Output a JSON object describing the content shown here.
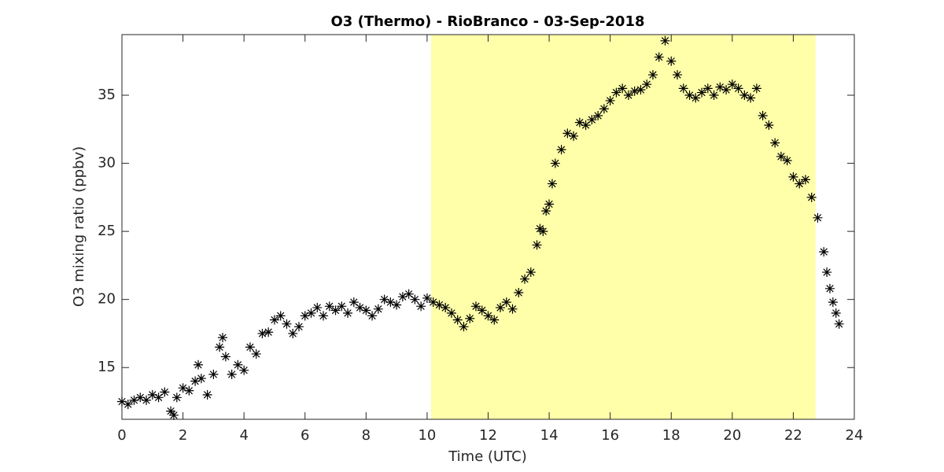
{
  "chart_data": {
    "type": "scatter",
    "title": "O3 (Thermo) - RioBranco - 03-Sep-2018",
    "xlabel": "Time (UTC)",
    "ylabel": "O3 mixing ratio (ppbv)",
    "xlim": [
      0,
      24
    ],
    "xticks": [
      0,
      2,
      4,
      6,
      8,
      10,
      12,
      14,
      16,
      18,
      20,
      22,
      24
    ],
    "ylim": [
      11.2,
      39.45
    ],
    "yticks": [
      15,
      20,
      25,
      30,
      35
    ],
    "shaded_span": {
      "x": [
        10.13,
        22.73
      ],
      "color": "#ffffaa"
    },
    "marker": "asterisk",
    "series": [
      {
        "color": "#000000",
        "x": [
          0.0,
          0.2,
          0.4,
          0.6,
          0.8,
          1.0,
          1.2,
          1.4,
          1.6,
          1.7,
          1.8,
          2.0,
          2.2,
          2.4,
          2.5,
          2.6,
          2.8,
          3.0,
          3.2,
          3.3,
          3.4,
          3.6,
          3.8,
          4.0,
          4.2,
          4.4,
          4.6,
          4.8,
          5.0,
          5.2,
          5.4,
          5.6,
          5.8,
          6.0,
          6.2,
          6.4,
          6.6,
          6.8,
          7.0,
          7.2,
          7.4,
          7.6,
          7.8,
          8.0,
          8.2,
          8.4,
          8.6,
          8.8,
          9.0,
          9.2,
          9.4,
          9.6,
          9.8,
          10.0,
          10.2,
          10.4,
          10.6,
          10.8,
          11.0,
          11.2,
          11.4,
          11.6,
          11.8,
          12.0,
          12.2,
          12.4,
          12.6,
          12.8,
          13.0,
          13.2,
          13.4,
          13.6,
          13.7,
          13.8,
          13.9,
          14.0,
          14.1,
          14.2,
          14.4,
          14.6,
          14.8,
          15.0,
          15.2,
          15.4,
          15.6,
          15.8,
          16.0,
          16.2,
          16.4,
          16.6,
          16.8,
          17.0,
          17.2,
          17.4,
          17.6,
          17.8,
          18.0,
          18.2,
          18.4,
          18.6,
          18.8,
          19.0,
          19.2,
          19.4,
          19.6,
          19.8,
          20.0,
          20.2,
          20.4,
          20.6,
          20.8,
          21.0,
          21.2,
          21.4,
          21.6,
          21.8,
          22.0,
          22.2,
          22.4,
          22.6,
          22.8,
          23.0,
          23.1,
          23.2,
          23.3,
          23.4,
          23.5
        ],
        "values": [
          12.5,
          12.3,
          12.6,
          12.8,
          12.6,
          13.0,
          12.8,
          13.2,
          11.8,
          11.5,
          12.8,
          13.5,
          13.3,
          14.0,
          15.2,
          14.2,
          13.0,
          14.5,
          16.5,
          17.2,
          15.8,
          14.5,
          15.2,
          14.8,
          16.5,
          16.0,
          17.5,
          17.6,
          18.5,
          18.8,
          18.2,
          17.5,
          18.0,
          18.8,
          19.0,
          19.4,
          18.8,
          19.5,
          19.2,
          19.5,
          19.0,
          19.8,
          19.4,
          19.2,
          18.8,
          19.3,
          20.0,
          19.8,
          19.6,
          20.2,
          20.4,
          20.0,
          19.5,
          20.1,
          19.8,
          19.6,
          19.4,
          19.0,
          18.5,
          18.0,
          18.6,
          19.5,
          19.2,
          18.8,
          18.5,
          19.4,
          19.8,
          19.3,
          20.5,
          21.5,
          22.0,
          24.0,
          25.2,
          25.0,
          26.5,
          27.0,
          28.5,
          30.0,
          31.0,
          32.2,
          32.0,
          33.0,
          32.8,
          33.2,
          33.5,
          34.0,
          34.6,
          35.2,
          35.5,
          35.0,
          35.3,
          35.4,
          35.8,
          36.5,
          37.8,
          39.0,
          37.5,
          36.5,
          35.5,
          35.0,
          34.8,
          35.2,
          35.5,
          35.0,
          35.6,
          35.4,
          35.8,
          35.5,
          35.0,
          34.8,
          35.5,
          33.5,
          32.8,
          31.5,
          30.5,
          30.2,
          29.0,
          28.5,
          28.8,
          27.5,
          26.0,
          23.5,
          22.0,
          20.8,
          19.8,
          19.0,
          18.2
        ]
      }
    ]
  }
}
